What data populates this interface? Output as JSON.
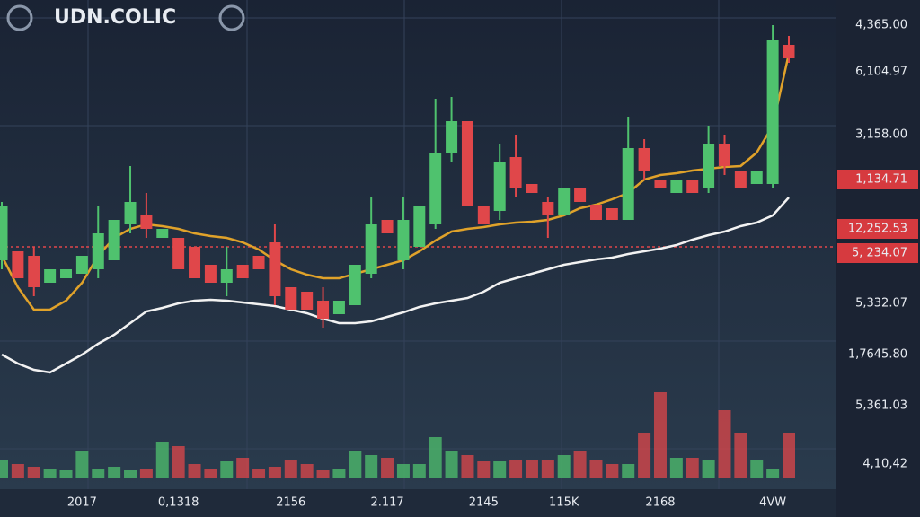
{
  "chart_data": {
    "type": "candlestick",
    "title": "UDN.COLIC",
    "categories": [
      null,
      null,
      null,
      null,
      null,
      "2017",
      null,
      null,
      null,
      null,
      null,
      "0,1318",
      null,
      null,
      null,
      null,
      null,
      null,
      "2156",
      null,
      null,
      null,
      null,
      null,
      "2.117",
      null,
      null,
      null,
      null,
      null,
      "2145",
      null,
      null,
      null,
      null,
      "115K",
      null,
      null,
      null,
      null,
      null,
      "2168",
      null,
      null,
      null,
      null,
      null,
      null,
      "4VW",
      null
    ],
    "open": [
      255,
      265,
      260,
      230,
      235,
      240,
      245,
      255,
      295,
      305,
      280,
      280,
      270,
      250,
      230,
      250,
      260,
      275,
      225,
      220,
      210,
      195,
      205,
      240,
      300,
      255,
      270,
      295,
      375,
      410,
      315,
      310,
      370,
      340,
      320,
      305,
      335,
      317,
      313,
      300,
      380,
      345,
      330,
      345,
      335,
      385,
      355,
      340,
      340,
      495
    ],
    "close": [
      315,
      235,
      225,
      245,
      245,
      260,
      285,
      300,
      320,
      290,
      290,
      245,
      235,
      230,
      245,
      235,
      245,
      215,
      200,
      200,
      190,
      210,
      250,
      295,
      285,
      300,
      315,
      375,
      410,
      315,
      295,
      365,
      335,
      330,
      305,
      335,
      320,
      300,
      300,
      380,
      355,
      335,
      345,
      330,
      385,
      360,
      335,
      355,
      500,
      480
    ],
    "high": [
      320,
      265,
      270,
      245,
      245,
      260,
      315,
      300,
      360,
      330,
      290,
      280,
      270,
      250,
      270,
      250,
      260,
      295,
      225,
      220,
      225,
      210,
      250,
      325,
      300,
      325,
      315,
      435,
      437,
      410,
      315,
      385,
      395,
      340,
      325,
      335,
      335,
      317,
      313,
      415,
      390,
      345,
      345,
      345,
      405,
      395,
      355,
      355,
      517,
      505
    ],
    "low": [
      245,
      235,
      215,
      230,
      235,
      240,
      235,
      255,
      285,
      280,
      280,
      245,
      235,
      230,
      215,
      235,
      245,
      205,
      200,
      200,
      180,
      195,
      205,
      235,
      285,
      245,
      270,
      290,
      365,
      315,
      295,
      300,
      325,
      330,
      280,
      305,
      320,
      300,
      300,
      300,
      345,
      335,
      330,
      330,
      330,
      350,
      335,
      340,
      335,
      475
    ],
    "volume": [
      20,
      15,
      12,
      10,
      8,
      30,
      10,
      12,
      8,
      10,
      40,
      35,
      15,
      10,
      18,
      22,
      10,
      12,
      20,
      15,
      8,
      10,
      30,
      25,
      22,
      15,
      15,
      45,
      30,
      25,
      18,
      18,
      20,
      20,
      20,
      25,
      30,
      20,
      15,
      15,
      50,
      95,
      22,
      22,
      20,
      75,
      50,
      20,
      10,
      50
    ],
    "lines": [
      {
        "color": "#e0a22a",
        "values": [
          260,
          225,
          200,
          200,
          210,
          230,
          260,
          280,
          290,
          295,
          293,
          290,
          285,
          282,
          280,
          275,
          267,
          255,
          245,
          239,
          235,
          235,
          240,
          245,
          250,
          255,
          265,
          277,
          287,
          290,
          292,
          295,
          297,
          298,
          300,
          305,
          313,
          317,
          323,
          330,
          345,
          350,
          352,
          355,
          357,
          359,
          360,
          375,
          405,
          485
        ]
      },
      {
        "color": "#f2f2f2",
        "values": [
          150,
          140,
          133,
          130,
          140,
          150,
          162,
          172,
          185,
          198,
          202,
          207,
          210,
          211,
          210,
          208,
          206,
          204,
          200,
          196,
          190,
          185,
          185,
          187,
          192,
          197,
          203,
          207,
          210,
          213,
          220,
          230,
          235,
          240,
          245,
          250,
          253,
          256,
          258,
          262,
          265,
          268,
          272,
          278,
          283,
          287,
          293,
          297,
          305,
          325
        ]
      }
    ],
    "up_color": "#4fc26e",
    "down_color": "#e0474a",
    "ylim": [
      0,
      545
    ],
    "price_line": 270,
    "price_labels": [
      "4,365.00",
      "6,104.97",
      "3,158.00",
      "1,134.71",
      "12,252.53",
      "5, 234.07",
      "5,332.07",
      "1,7645.80",
      "5,361.03",
      "4,10,42"
    ],
    "price_label_highlight": [
      false,
      false,
      false,
      true,
      true,
      true,
      false,
      false,
      false,
      false
    ]
  }
}
